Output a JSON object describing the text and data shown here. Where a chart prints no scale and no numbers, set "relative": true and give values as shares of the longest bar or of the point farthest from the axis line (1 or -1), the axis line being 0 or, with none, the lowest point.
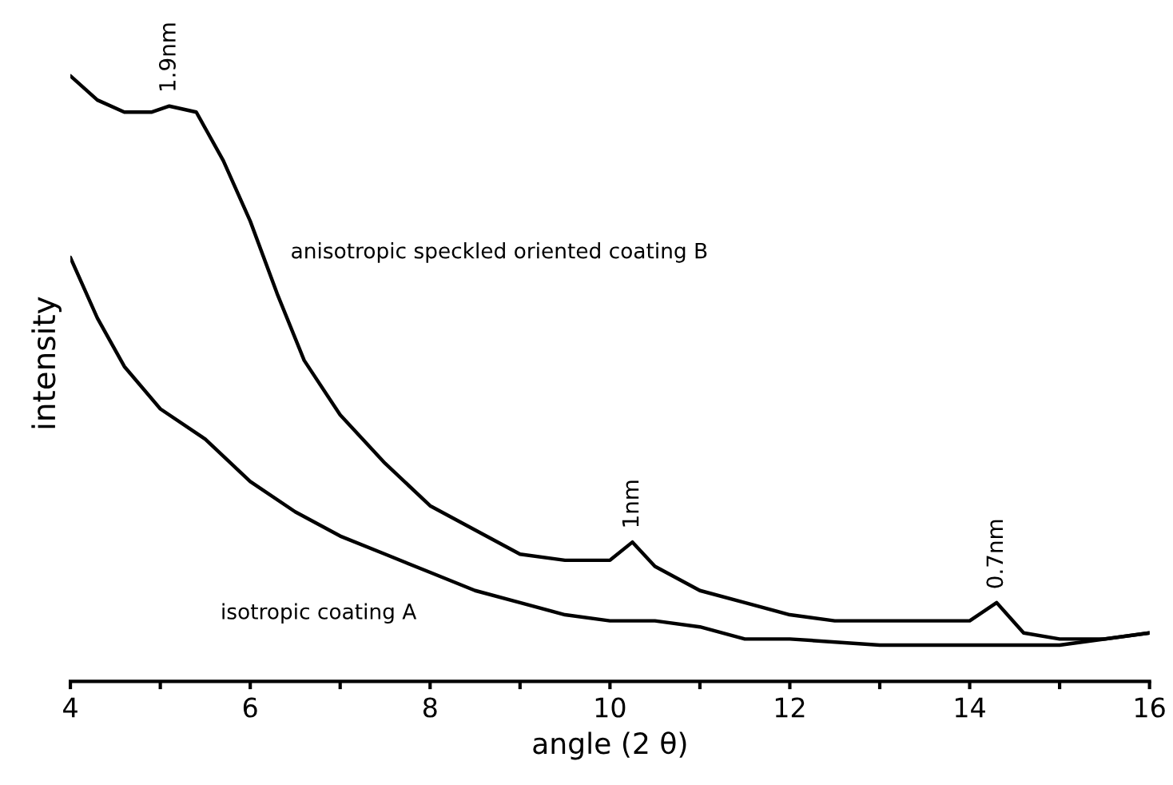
{
  "chart_data": {
    "type": "line",
    "relative": true,
    "xlabel": "angle (2 θ)",
    "ylabel": "intensity",
    "xlim": [
      4,
      16
    ],
    "xticks": [
      4,
      {
        "value": 5,
        "label": null
      },
      6,
      {
        "value": 7,
        "label": null
      },
      8,
      {
        "value": 9,
        "label": null
      },
      10,
      {
        "value": 11,
        "label": null
      },
      12,
      {
        "value": 13,
        "label": null
      },
      14,
      {
        "value": 15,
        "label": null
      },
      16
    ],
    "tick_labels": "x",
    "grid": false,
    "legend": false,
    "series": [
      {
        "name": "anisotropic speckled oriented coating B",
        "color": "#000000",
        "x": [
          4.0,
          4.3,
          4.6,
          4.9,
          5.1,
          5.4,
          5.7,
          6.0,
          6.3,
          6.6,
          7.0,
          7.5,
          8.0,
          8.5,
          9.0,
          9.5,
          10.0,
          10.25,
          10.5,
          11.0,
          11.5,
          12.0,
          12.5,
          13.0,
          13.5,
          14.0,
          14.3,
          14.6,
          15.0,
          15.5,
          16.0
        ],
        "values": [
          1.0,
          0.96,
          0.94,
          0.94,
          0.95,
          0.94,
          0.86,
          0.76,
          0.64,
          0.53,
          0.44,
          0.36,
          0.29,
          0.25,
          0.21,
          0.2,
          0.2,
          0.23,
          0.19,
          0.15,
          0.13,
          0.11,
          0.1,
          0.1,
          0.1,
          0.1,
          0.13,
          0.08,
          0.07,
          0.07,
          0.08
        ]
      },
      {
        "name": "isotropic coating A",
        "color": "#000000",
        "x": [
          4.0,
          4.3,
          4.6,
          5.0,
          5.5,
          6.0,
          6.5,
          7.0,
          7.5,
          8.0,
          8.5,
          9.0,
          9.5,
          10.0,
          10.5,
          11.0,
          11.5,
          12.0,
          13.0,
          14.0,
          15.0,
          16.0
        ],
        "values": [
          0.7,
          0.6,
          0.52,
          0.45,
          0.4,
          0.33,
          0.28,
          0.24,
          0.21,
          0.18,
          0.15,
          0.13,
          0.11,
          0.1,
          0.1,
          0.09,
          0.07,
          0.07,
          0.06,
          0.06,
          0.06,
          0.08
        ]
      }
    ],
    "annotations": [
      {
        "text": "1.9nm",
        "x": 5.1,
        "y": 0.95
      },
      {
        "text": "1nm",
        "x": 10.25,
        "y": 0.23
      },
      {
        "text": "0.7nm",
        "x": 14.3,
        "y": 0.13
      }
    ]
  }
}
